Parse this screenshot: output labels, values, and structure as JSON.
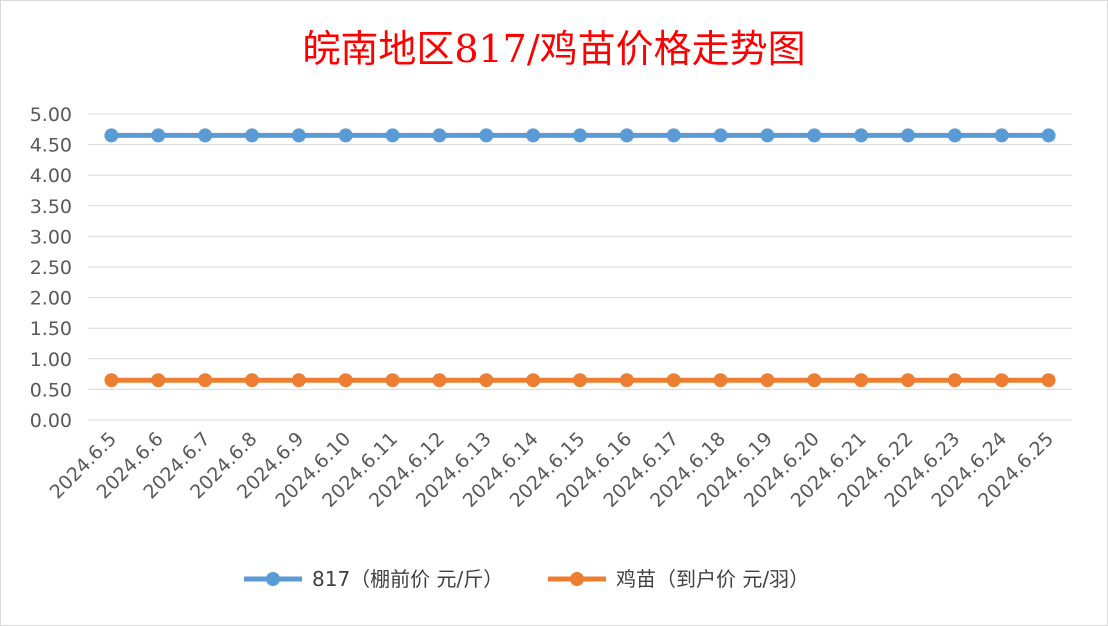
{
  "chart_data": {
    "type": "line",
    "title": "皖南地区817/鸡苗价格走势图",
    "categories": [
      "2024.6.5",
      "2024.6.6",
      "2024.6.7",
      "2024.6.8",
      "2024.6.9",
      "2024.6.10",
      "2024.6.11",
      "2024.6.12",
      "2024.6.13",
      "2024.6.14",
      "2024.6.15",
      "2024.6.16",
      "2024.6.17",
      "2024.6.18",
      "2024.6.19",
      "2024.6.20",
      "2024.6.21",
      "2024.6.22",
      "2024.6.23",
      "2024.6.24",
      "2024.6.25"
    ],
    "ylim": [
      0,
      5
    ],
    "yticks": [
      "0.00",
      "0.50",
      "1.00",
      "1.50",
      "2.00",
      "2.50",
      "3.00",
      "3.50",
      "4.00",
      "4.50",
      "5.00"
    ],
    "grid": true,
    "legend_position": "bottom",
    "series": [
      {
        "name": "817（棚前价 元/斤）",
        "color": "#5b9bd5",
        "values": [
          4.65,
          4.65,
          4.65,
          4.65,
          4.65,
          4.65,
          4.65,
          4.65,
          4.65,
          4.65,
          4.65,
          4.65,
          4.65,
          4.65,
          4.65,
          4.65,
          4.65,
          4.65,
          4.65,
          4.65,
          4.65
        ]
      },
      {
        "name": "鸡苗（到户价 元/羽）",
        "color": "#ed7d31",
        "values": [
          0.65,
          0.65,
          0.65,
          0.65,
          0.65,
          0.65,
          0.65,
          0.65,
          0.65,
          0.65,
          0.65,
          0.65,
          0.65,
          0.65,
          0.65,
          0.65,
          0.65,
          0.65,
          0.65,
          0.65,
          0.65
        ]
      }
    ]
  }
}
